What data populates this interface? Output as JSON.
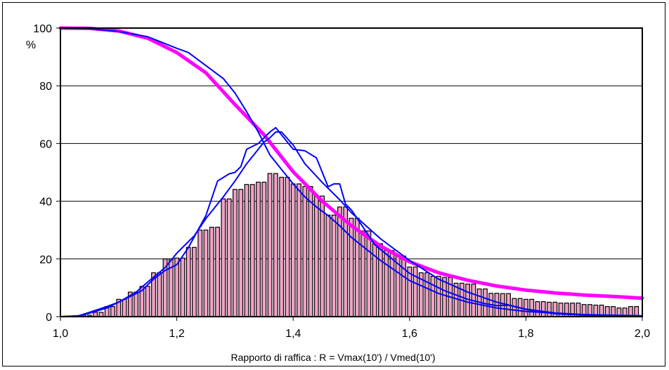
{
  "chart_data": {
    "type": "bar",
    "title": "",
    "xlabel": "Rapporto di raffica : R = Vmax(10') / Vmed(10')",
    "ylabel": "%",
    "xlim": [
      1.0,
      2.0
    ],
    "ylim": [
      0,
      100
    ],
    "x_ticks": [
      "1,0",
      "1,2",
      "1,4",
      "1,6",
      "1,8",
      "2,0"
    ],
    "y_ticks": [
      "0",
      "20",
      "40",
      "60",
      "80",
      "100"
    ],
    "grid": "horizontal",
    "bars": {
      "color": "#f4a0c8",
      "x": [
        1.04,
        1.05,
        1.06,
        1.07,
        1.08,
        1.09,
        1.1,
        1.11,
        1.12,
        1.13,
        1.14,
        1.15,
        1.16,
        1.17,
        1.18,
        1.19,
        1.2,
        1.21,
        1.22,
        1.23,
        1.24,
        1.25,
        1.26,
        1.27,
        1.28,
        1.29,
        1.3,
        1.31,
        1.32,
        1.33,
        1.34,
        1.35,
        1.36,
        1.37,
        1.38,
        1.39,
        1.4,
        1.41,
        1.42,
        1.43,
        1.44,
        1.45,
        1.46,
        1.47,
        1.48,
        1.49,
        1.5,
        1.51,
        1.52,
        1.53,
        1.54,
        1.55,
        1.56,
        1.57,
        1.58,
        1.59,
        1.6,
        1.61,
        1.62,
        1.63,
        1.64,
        1.65,
        1.66,
        1.67,
        1.68,
        1.69,
        1.7,
        1.71,
        1.72,
        1.73,
        1.74,
        1.75,
        1.76,
        1.77,
        1.78,
        1.79,
        1.8,
        1.81,
        1.82,
        1.83,
        1.84,
        1.85,
        1.86,
        1.87,
        1.88,
        1.89,
        1.9,
        1.91,
        1.92,
        1.93,
        1.94,
        1.95,
        1.96,
        1.97,
        1.98,
        1.99
      ],
      "values": [
        0.5,
        0.5,
        1.5,
        1.5,
        3.5,
        3.5,
        6,
        6,
        8.5,
        8.5,
        10.5,
        10.5,
        15.2,
        15.2,
        20,
        20,
        20.3,
        20.3,
        24,
        24,
        30,
        30,
        31,
        31,
        40.8,
        40.8,
        44.1,
        44.1,
        45.8,
        45.8,
        46.6,
        46.6,
        49.6,
        49.6,
        48.3,
        48.3,
        46,
        46,
        45.1,
        45.1,
        41.8,
        41.8,
        35.2,
        35.2,
        38,
        38,
        34.1,
        34.1,
        29.7,
        29.7,
        25.3,
        25.3,
        22.9,
        22.9,
        21,
        21,
        17.2,
        17.2,
        15.2,
        15.2,
        14,
        14,
        13.6,
        13.6,
        11.6,
        11.6,
        11.3,
        11.3,
        9.6,
        9.6,
        8.1,
        8.1,
        8,
        8,
        6.3,
        6.3,
        6,
        6,
        5.2,
        5.2,
        5,
        5,
        4.7,
        4.7,
        4.7,
        4.7,
        4.2,
        4.2,
        4,
        4,
        3.5,
        3.5,
        3,
        3,
        3.5,
        3.5
      ]
    },
    "series": [
      {
        "color": "#ff00ff",
        "x": [
          1.0,
          1.05,
          1.1,
          1.15,
          1.2,
          1.25,
          1.3,
          1.35,
          1.4,
          1.45,
          1.5,
          1.55,
          1.6,
          1.65,
          1.7,
          1.75,
          1.8,
          1.85,
          1.9,
          1.95,
          2.0
        ],
        "values": [
          100,
          99.9,
          99,
          96.5,
          91.5,
          84.5,
          73.5,
          63,
          50.2,
          40,
          31.5,
          24.5,
          19,
          15.2,
          12.6,
          10.6,
          9.2,
          8.2,
          7.5,
          7,
          6.4
        ]
      },
      {
        "color": "#0000ff",
        "x": [
          1.0,
          1.05,
          1.1,
          1.15,
          1.2,
          1.22,
          1.25,
          1.28,
          1.3,
          1.32,
          1.34,
          1.36,
          1.38,
          1.4,
          1.42,
          1.44,
          1.46,
          1.48,
          1.5,
          1.55,
          1.6,
          1.65,
          1.7,
          1.75,
          1.8,
          1.85,
          1.9,
          1.95,
          2.0
        ],
        "values": [
          100,
          99.8,
          98.8,
          97,
          93,
          91.5,
          87,
          82.5,
          77.5,
          71,
          64,
          56,
          51,
          46,
          41.5,
          38,
          35,
          31.5,
          27.5,
          19.5,
          12.5,
          8,
          5,
          3,
          1.8,
          1.2,
          0.7,
          0.3,
          0.1
        ]
      },
      {
        "color": "#0000ff",
        "x": [
          1.0,
          1.03,
          1.05,
          1.08,
          1.1,
          1.12,
          1.14,
          1.16,
          1.18,
          1.2,
          1.22,
          1.25,
          1.27,
          1.29,
          1.3,
          1.31,
          1.32,
          1.34,
          1.36,
          1.37,
          1.38,
          1.4,
          1.42,
          1.44,
          1.46,
          1.47,
          1.48,
          1.49,
          1.5,
          1.52,
          1.54,
          1.57,
          1.6,
          1.63,
          1.66,
          1.7,
          1.73,
          1.75,
          1.77,
          1.8,
          1.85,
          1.9,
          2.0
        ],
        "values": [
          0,
          0.2,
          1.5,
          3.5,
          5,
          7,
          9,
          13,
          16,
          18,
          24,
          35,
          47,
          49.5,
          50,
          52,
          58,
          60,
          64,
          65.5,
          63,
          58,
          57.5,
          55,
          45,
          46,
          46,
          39,
          37,
          31,
          25,
          20,
          15,
          12,
          9,
          6,
          4.5,
          3.8,
          4,
          2.5,
          1,
          0.5,
          0.2
        ]
      },
      {
        "color": "#0000ff",
        "x": [
          1.0,
          1.03,
          1.05,
          1.08,
          1.1,
          1.13,
          1.15,
          1.18,
          1.2,
          1.23,
          1.25,
          1.28,
          1.3,
          1.32,
          1.34,
          1.35,
          1.36,
          1.37,
          1.38,
          1.4,
          1.42,
          1.45,
          1.48,
          1.5,
          1.55,
          1.6,
          1.65,
          1.7,
          1.75,
          1.8,
          1.85,
          1.9,
          2.0
        ],
        "values": [
          0,
          0.3,
          1.2,
          3,
          5,
          8.5,
          12,
          17,
          22,
          28,
          34,
          41.5,
          47,
          53,
          58,
          60.5,
          62,
          64,
          64,
          59.5,
          53,
          46.5,
          40.5,
          36,
          27,
          19.5,
          13,
          8.5,
          5,
          2.6,
          1.3,
          0.7,
          0.3
        ]
      }
    ]
  }
}
